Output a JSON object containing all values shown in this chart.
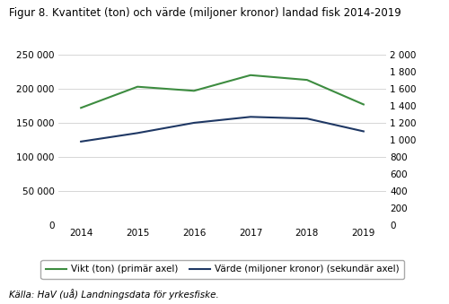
{
  "title_part1": "Figur 8.",
  "title_part2": "Kvantitet (ton) och värde (miljoner kronor) landad fisk 2014-2019",
  "years": [
    2014,
    2015,
    2016,
    2017,
    2018,
    2019
  ],
  "vikt": [
    172000,
    203000,
    197000,
    220000,
    213000,
    177000
  ],
  "varde": [
    980,
    1080,
    1200,
    1270,
    1250,
    1100
  ],
  "vikt_color": "#3d8c40",
  "varde_color": "#1f3864",
  "ylim_left": [
    0,
    250000
  ],
  "ylim_right": [
    0,
    2000
  ],
  "yticks_left": [
    0,
    50000,
    100000,
    150000,
    200000,
    250000
  ],
  "yticks_right": [
    0,
    200,
    400,
    600,
    800,
    1000,
    1200,
    1400,
    1600,
    1800,
    2000
  ],
  "ytick_labels_left": [
    "0",
    "50 000",
    "100 000",
    "150 000",
    "200 000",
    "250 000"
  ],
  "ytick_labels_right": [
    "0",
    "200",
    "400",
    "600",
    "800",
    "1 000",
    "1 200",
    "1 400",
    "1 600",
    "1 800",
    "2 000"
  ],
  "legend_vikt": "Vikt (ton) (primär axel)",
  "legend_varde": "Värde (miljoner kronor) (sekundär axel)",
  "caption": "Källa: HaV (uå) Landningsdata för yrkesfiske.",
  "background_color": "#ffffff",
  "grid_color": "#d0d0d0",
  "title_fontsize": 8.5,
  "tick_fontsize": 7.5,
  "legend_fontsize": 7.5,
  "caption_fontsize": 7.5,
  "linewidth": 1.5
}
